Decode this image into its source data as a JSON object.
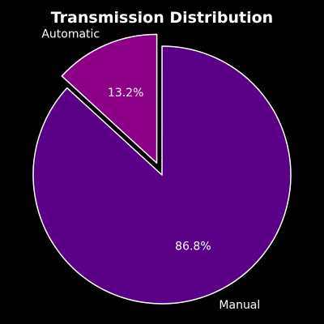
{
  "chart_data": {
    "type": "pie",
    "title": "Transmission Distribution",
    "categories": [
      "Manual",
      "Automatic"
    ],
    "values": [
      86.8,
      13.2
    ],
    "labels": [
      "86.8%",
      "13.2%"
    ],
    "colors": [
      "#5a0087",
      "#8b0087"
    ],
    "exploded": [
      "Automatic"
    ],
    "legend": "none"
  }
}
